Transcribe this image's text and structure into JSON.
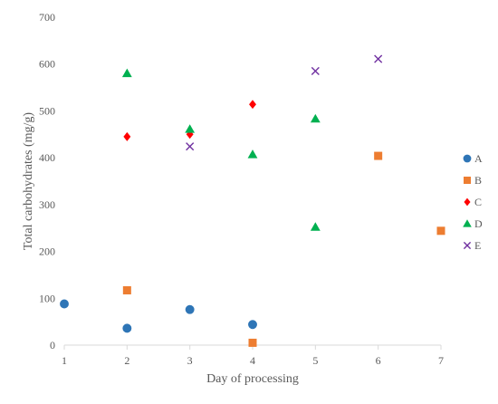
{
  "chart_data": {
    "type": "scatter",
    "title": "",
    "xlabel": "Day of processing",
    "ylabel": "Total carbohydrates (mg/g)",
    "xlim": [
      1,
      7
    ],
    "ylim": [
      0,
      700
    ],
    "x_ticks": [
      1,
      2,
      3,
      4,
      5,
      6,
      7
    ],
    "y_ticks": [
      0,
      100,
      200,
      300,
      400,
      500,
      600,
      700
    ],
    "grid": false,
    "legend": "right",
    "series": [
      {
        "name": "A",
        "marker": "circle",
        "color": "#2E75B6",
        "points": [
          [
            1,
            88
          ],
          [
            2,
            36
          ],
          [
            3,
            76
          ],
          [
            4,
            44
          ]
        ]
      },
      {
        "name": "B",
        "marker": "square",
        "color": "#ED7D31",
        "points": [
          [
            2,
            117
          ],
          [
            4,
            5
          ],
          [
            6,
            404
          ],
          [
            7,
            244
          ]
        ]
      },
      {
        "name": "C",
        "marker": "diamond",
        "color": "#FF0000",
        "points": [
          [
            2,
            445
          ],
          [
            3,
            450
          ],
          [
            4,
            514
          ]
        ]
      },
      {
        "name": "D",
        "marker": "triangle",
        "color": "#00B050",
        "points": [
          [
            2,
            580
          ],
          [
            3,
            461
          ],
          [
            4,
            407
          ],
          [
            5,
            483
          ],
          [
            5,
            252
          ]
        ]
      },
      {
        "name": "E",
        "marker": "x",
        "color": "#7030A0",
        "points": [
          [
            3,
            424
          ],
          [
            5,
            585
          ],
          [
            6,
            611
          ]
        ]
      }
    ]
  }
}
